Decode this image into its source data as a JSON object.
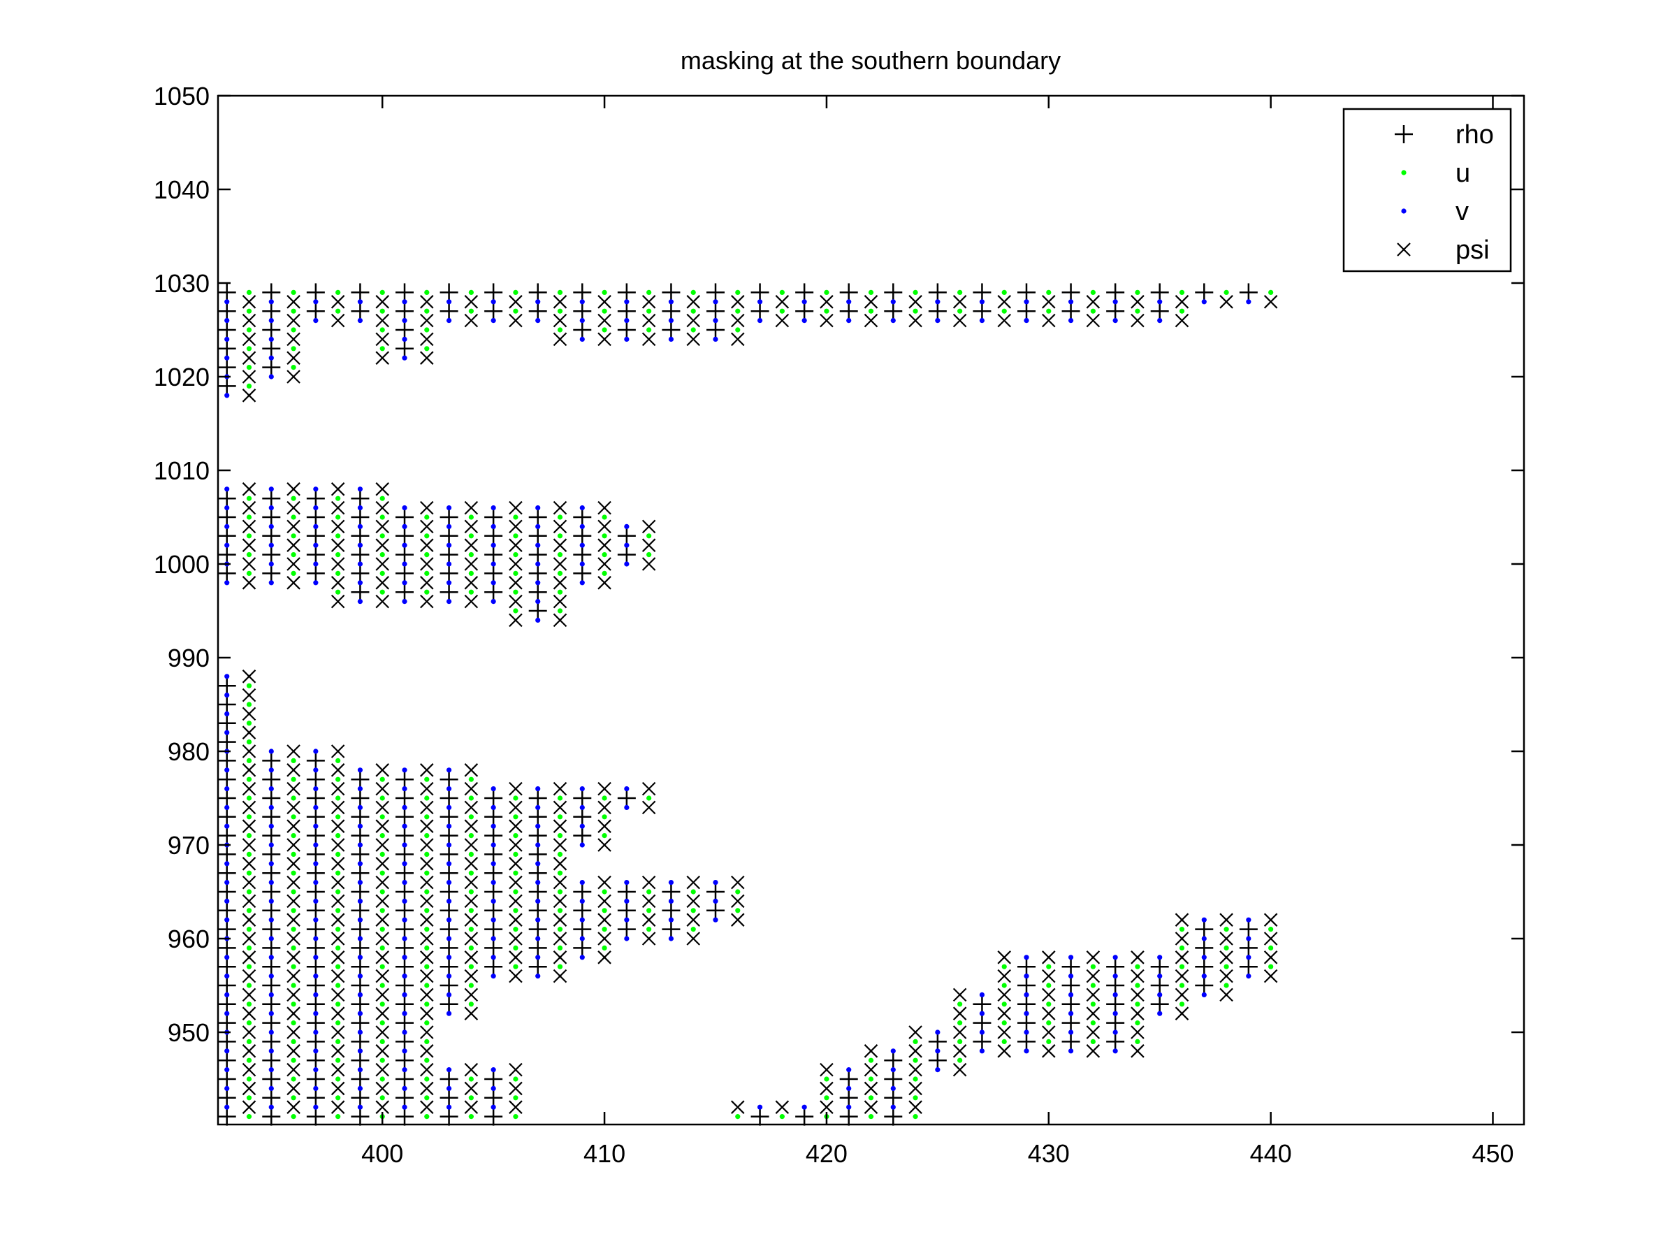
{
  "chart_data": {
    "type": "scatter",
    "title": "masking at the southern boundary",
    "xlabel": "",
    "ylabel": "",
    "xlim": [
      392.6,
      451.4
    ],
    "ylim": [
      940.15,
      1050
    ],
    "xticks": [
      400,
      410,
      420,
      430,
      440,
      450
    ],
    "yticks": [
      950,
      960,
      970,
      980,
      990,
      1000,
      1010,
      1020,
      1030,
      1040,
      1050
    ],
    "grid": false,
    "legend_position": "top-right",
    "series": [
      {
        "name": "rho",
        "marker": "plus",
        "color": "#000000",
        "rule": "odd x, odd y"
      },
      {
        "name": "u",
        "marker": "dot",
        "color": "#00ff00",
        "rule": "even x, odd y"
      },
      {
        "name": "v",
        "marker": "dot",
        "color": "#0000ff",
        "rule": "odd x, even y"
      },
      {
        "name": "psi",
        "marker": "cross",
        "color": "#000000",
        "rule": "even x, even y"
      }
    ],
    "columns": [
      {
        "x": 393,
        "segments": [
          [
            1018,
            1029
          ],
          [
            998,
            1008
          ],
          [
            941,
            988
          ]
        ]
      },
      {
        "x": 394,
        "segments": [
          [
            1018,
            1029
          ],
          [
            998,
            1008
          ],
          [
            941,
            988
          ]
        ]
      },
      {
        "x": 395,
        "segments": [
          [
            1020,
            1029
          ],
          [
            998,
            1008
          ],
          [
            941,
            980
          ]
        ]
      },
      {
        "x": 396,
        "segments": [
          [
            1020,
            1029
          ],
          [
            998,
            1008
          ],
          [
            941,
            980
          ]
        ]
      },
      {
        "x": 397,
        "segments": [
          [
            1026,
            1029
          ],
          [
            998,
            1008
          ],
          [
            941,
            980
          ]
        ]
      },
      {
        "x": 398,
        "segments": [
          [
            1026,
            1029
          ],
          [
            996,
            1008
          ],
          [
            941,
            980
          ]
        ]
      },
      {
        "x": 399,
        "segments": [
          [
            1026,
            1029
          ],
          [
            996,
            1008
          ],
          [
            941,
            978
          ]
        ]
      },
      {
        "x": 400,
        "segments": [
          [
            1022,
            1029
          ],
          [
            996,
            1008
          ],
          [
            941,
            978
          ]
        ]
      },
      {
        "x": 401,
        "segments": [
          [
            1022,
            1029
          ],
          [
            996,
            1006
          ],
          [
            941,
            978
          ]
        ]
      },
      {
        "x": 402,
        "segments": [
          [
            1022,
            1029
          ],
          [
            996,
            1006
          ],
          [
            941,
            978
          ]
        ]
      },
      {
        "x": 403,
        "segments": [
          [
            1026,
            1029
          ],
          [
            996,
            1006
          ],
          [
            952,
            978
          ],
          [
            941,
            946
          ]
        ]
      },
      {
        "x": 404,
        "segments": [
          [
            1026,
            1029
          ],
          [
            996,
            1006
          ],
          [
            952,
            978
          ],
          [
            941,
            946
          ]
        ]
      },
      {
        "x": 405,
        "segments": [
          [
            1026,
            1029
          ],
          [
            996,
            1006
          ],
          [
            956,
            976
          ],
          [
            941,
            946
          ]
        ]
      },
      {
        "x": 406,
        "segments": [
          [
            1026,
            1029
          ],
          [
            994,
            1006
          ],
          [
            956,
            976
          ],
          [
            941,
            946
          ]
        ]
      },
      {
        "x": 407,
        "segments": [
          [
            1026,
            1029
          ],
          [
            994,
            1006
          ],
          [
            956,
            976
          ]
        ]
      },
      {
        "x": 408,
        "segments": [
          [
            1024,
            1029
          ],
          [
            994,
            1006
          ],
          [
            956,
            976
          ]
        ]
      },
      {
        "x": 409,
        "segments": [
          [
            1024,
            1029
          ],
          [
            998,
            1006
          ],
          [
            970,
            976
          ],
          [
            958,
            966
          ]
        ]
      },
      {
        "x": 410,
        "segments": [
          [
            1024,
            1029
          ],
          [
            998,
            1006
          ],
          [
            970,
            976
          ],
          [
            958,
            966
          ]
        ]
      },
      {
        "x": 411,
        "segments": [
          [
            1024,
            1029
          ],
          [
            1000,
            1004
          ],
          [
            974,
            976
          ],
          [
            960,
            966
          ]
        ]
      },
      {
        "x": 412,
        "segments": [
          [
            1024,
            1029
          ],
          [
            1000,
            1004
          ],
          [
            974,
            976
          ],
          [
            960,
            966
          ]
        ]
      },
      {
        "x": 413,
        "segments": [
          [
            1024,
            1029
          ],
          [
            960,
            966
          ]
        ]
      },
      {
        "x": 414,
        "segments": [
          [
            1024,
            1029
          ],
          [
            960,
            966
          ]
        ]
      },
      {
        "x": 415,
        "segments": [
          [
            1024,
            1029
          ],
          [
            962,
            966
          ]
        ]
      },
      {
        "x": 416,
        "segments": [
          [
            1024,
            1029
          ],
          [
            962,
            966
          ],
          [
            941,
            942
          ]
        ]
      },
      {
        "x": 417,
        "segments": [
          [
            1026,
            1029
          ],
          [
            941,
            942
          ]
        ]
      },
      {
        "x": 418,
        "segments": [
          [
            1026,
            1029
          ],
          [
            941,
            942
          ]
        ]
      },
      {
        "x": 419,
        "segments": [
          [
            1026,
            1029
          ],
          [
            941,
            942
          ]
        ]
      },
      {
        "x": 420,
        "segments": [
          [
            1026,
            1029
          ],
          [
            941,
            946
          ]
        ]
      },
      {
        "x": 421,
        "segments": [
          [
            1026,
            1029
          ],
          [
            941,
            946
          ]
        ]
      },
      {
        "x": 422,
        "segments": [
          [
            1026,
            1029
          ],
          [
            941,
            948
          ]
        ]
      },
      {
        "x": 423,
        "segments": [
          [
            1026,
            1029
          ],
          [
            941,
            948
          ]
        ]
      },
      {
        "x": 424,
        "segments": [
          [
            1026,
            1029
          ],
          [
            941,
            950
          ]
        ]
      },
      {
        "x": 425,
        "segments": [
          [
            1026,
            1029
          ],
          [
            946,
            950
          ]
        ]
      },
      {
        "x": 426,
        "segments": [
          [
            1026,
            1029
          ],
          [
            946,
            954
          ]
        ]
      },
      {
        "x": 427,
        "segments": [
          [
            1026,
            1029
          ],
          [
            948,
            954
          ]
        ]
      },
      {
        "x": 428,
        "segments": [
          [
            1026,
            1029
          ],
          [
            948,
            958
          ]
        ]
      },
      {
        "x": 429,
        "segments": [
          [
            1026,
            1029
          ],
          [
            948,
            958
          ]
        ]
      },
      {
        "x": 430,
        "segments": [
          [
            1026,
            1029
          ],
          [
            948,
            958
          ]
        ]
      },
      {
        "x": 431,
        "segments": [
          [
            1026,
            1029
          ],
          [
            948,
            958
          ]
        ]
      },
      {
        "x": 432,
        "segments": [
          [
            1026,
            1029
          ],
          [
            948,
            958
          ]
        ]
      },
      {
        "x": 433,
        "segments": [
          [
            1026,
            1029
          ],
          [
            948,
            958
          ]
        ]
      },
      {
        "x": 434,
        "segments": [
          [
            1026,
            1029
          ],
          [
            948,
            958
          ]
        ]
      },
      {
        "x": 435,
        "segments": [
          [
            1026,
            1029
          ],
          [
            952,
            958
          ]
        ]
      },
      {
        "x": 436,
        "segments": [
          [
            1026,
            1029
          ],
          [
            952,
            962
          ]
        ]
      },
      {
        "x": 437,
        "segments": [
          [
            1028,
            1029
          ],
          [
            954,
            962
          ]
        ]
      },
      {
        "x": 438,
        "segments": [
          [
            1028,
            1029
          ],
          [
            954,
            962
          ]
        ]
      },
      {
        "x": 439,
        "segments": [
          [
            1028,
            1029
          ],
          [
            956,
            962
          ]
        ]
      },
      {
        "x": 440,
        "segments": [
          [
            1028,
            1029
          ],
          [
            956,
            962
          ]
        ]
      }
    ]
  }
}
